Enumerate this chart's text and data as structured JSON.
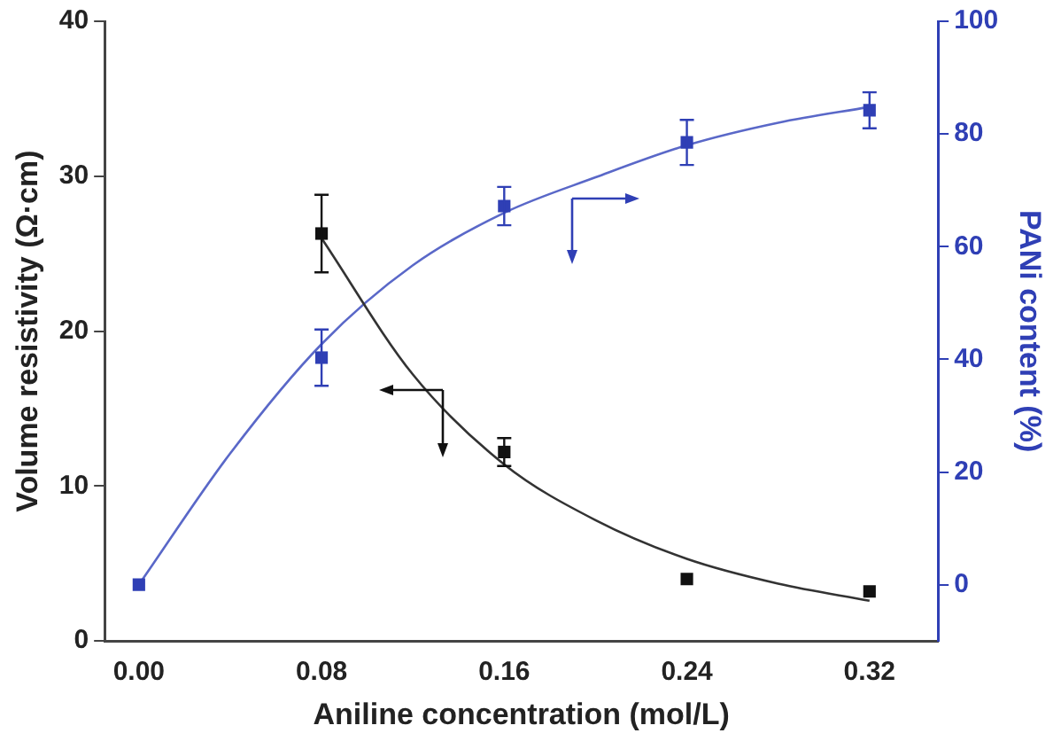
{
  "chart_data": {
    "type": "scatter",
    "xlabel": "Aniline concentration (mol/L)",
    "ylabel": "Volume resistivity (Ω·cm)",
    "y2label": "PANi content (%)",
    "xlim": [
      -0.015,
      0.35
    ],
    "xticks": [
      {
        "value": 0,
        "label": "0.00"
      },
      {
        "value": 0.08,
        "label": "0.08"
      },
      {
        "value": 0.16,
        "label": "0.16"
      },
      {
        "value": 0.24,
        "label": "0.24"
      },
      {
        "value": 0.32,
        "label": "0.32"
      }
    ],
    "ylim": [
      0,
      40
    ],
    "yticks": [
      0,
      10,
      20,
      30,
      40
    ],
    "y2lim": [
      -10,
      100
    ],
    "y2ticks": [
      0,
      20,
      40,
      60,
      80,
      100
    ],
    "grid": false,
    "series": [
      {
        "type": "scatter",
        "color": "#111111",
        "marker": "square",
        "x": [
          0.08,
          0.16,
          0.24,
          0.32
        ],
        "values": [
          26.3,
          12.2,
          4.0,
          3.2
        ],
        "errors": [
          2.5,
          0.9,
          null,
          null
        ]
      },
      {
        "type": "line",
        "color": "#333333",
        "marker": "none",
        "x": [
          0.08,
          0.12,
          0.16,
          0.2,
          0.24,
          0.28,
          0.32
        ],
        "values": [
          26.0,
          17.2,
          11.4,
          7.8,
          5.3,
          3.7,
          2.6
        ]
      },
      {
        "type": "scatter",
        "axis": "y2",
        "color": "#2f3fb5",
        "marker": "square",
        "x": [
          0,
          0.08,
          0.16,
          0.24,
          0.32
        ],
        "values": [
          0,
          40.3,
          67.2,
          78.5,
          84.2
        ],
        "errors": [
          null,
          5,
          3.4,
          4,
          3.2
        ]
      },
      {
        "type": "line",
        "axis": "y2",
        "color": "#5a68c8",
        "marker": "none",
        "x": [
          0,
          0.04,
          0.08,
          0.12,
          0.16,
          0.2,
          0.24,
          0.28,
          0.32
        ],
        "values": [
          0,
          23.3,
          42.7,
          56.7,
          66,
          72.3,
          78,
          82,
          84.8
        ]
      }
    ]
  }
}
